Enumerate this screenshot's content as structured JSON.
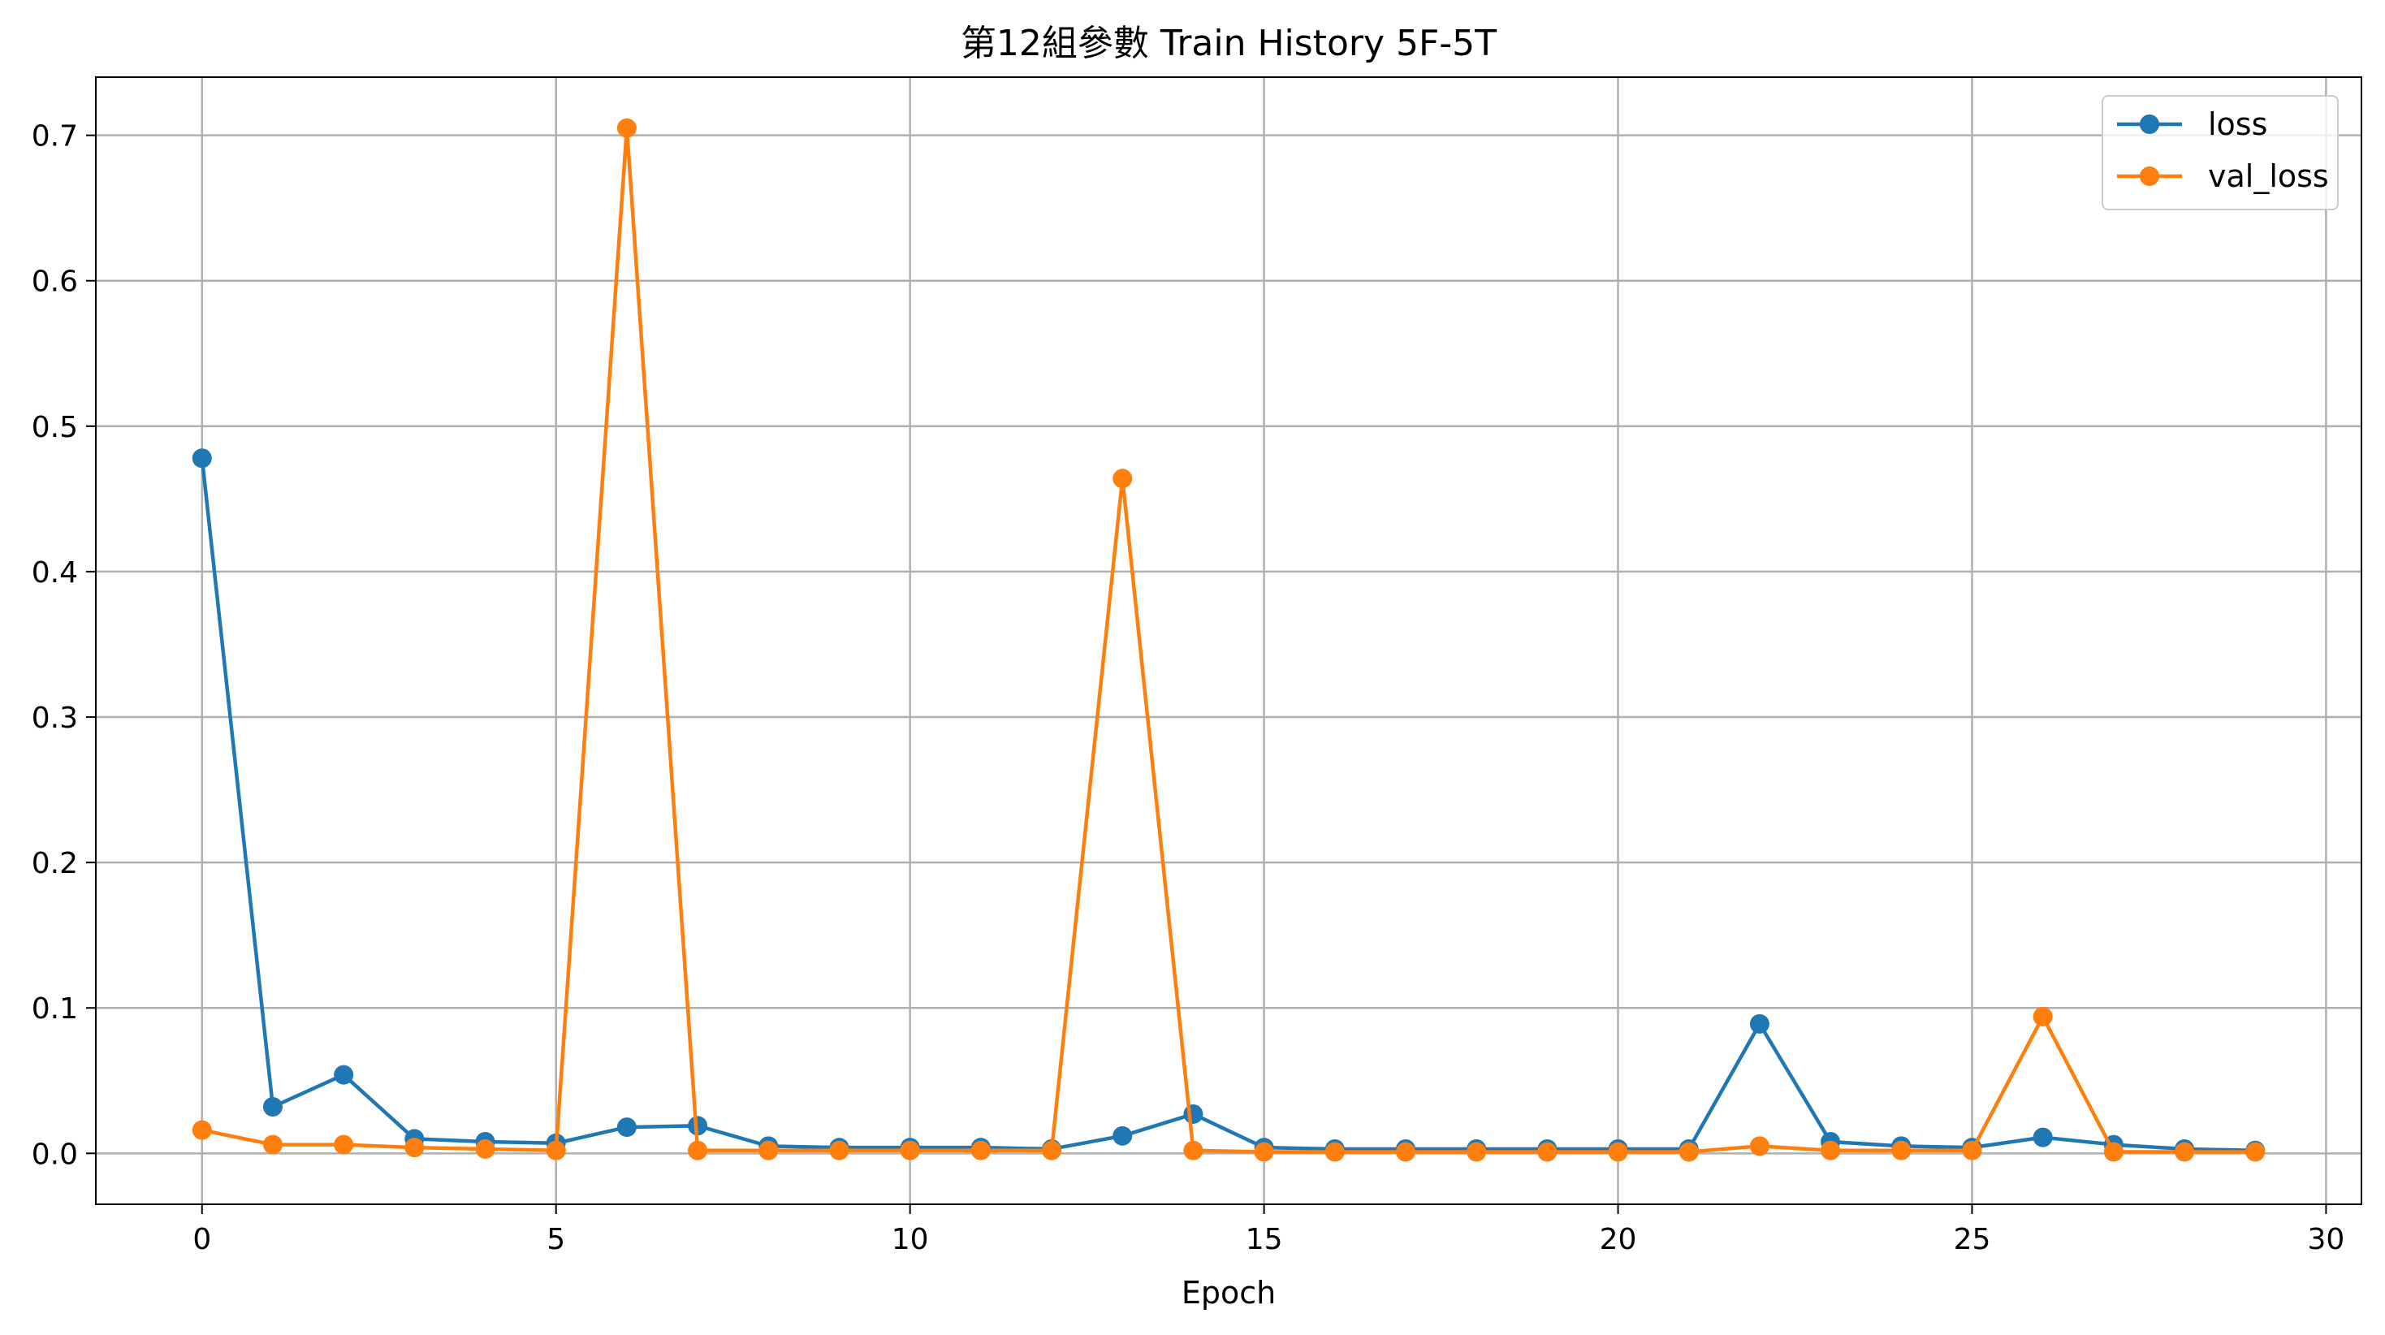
{
  "chart_data": {
    "type": "line",
    "title": "第12組參數 Train History 5F-5T",
    "xlabel": "Epoch",
    "ylabel": "",
    "xlim": [
      -1.5,
      30.5
    ],
    "ylim": [
      -0.035,
      0.74
    ],
    "xticks": [
      0,
      5,
      10,
      15,
      20,
      25,
      30
    ],
    "yticks": [
      0.0,
      0.1,
      0.2,
      0.3,
      0.4,
      0.5,
      0.6,
      0.7
    ],
    "xtick_labels": [
      "0",
      "5",
      "10",
      "15",
      "20",
      "25",
      "30"
    ],
    "ytick_labels": [
      "0.0",
      "0.1",
      "0.2",
      "0.3",
      "0.4",
      "0.5",
      "0.6",
      "0.7"
    ],
    "grid": true,
    "legend_position": "top-right",
    "x": [
      0,
      1,
      2,
      3,
      4,
      5,
      6,
      7,
      8,
      9,
      10,
      11,
      12,
      13,
      14,
      15,
      16,
      17,
      18,
      19,
      20,
      21,
      22,
      23,
      24,
      25,
      26,
      27,
      28,
      29
    ],
    "series": [
      {
        "name": "loss",
        "color": "#1f77b4",
        "values": [
          0.478,
          0.032,
          0.054,
          0.01,
          0.008,
          0.007,
          0.018,
          0.019,
          0.005,
          0.004,
          0.004,
          0.004,
          0.003,
          0.012,
          0.027,
          0.004,
          0.003,
          0.003,
          0.003,
          0.003,
          0.003,
          0.003,
          0.089,
          0.008,
          0.005,
          0.004,
          0.011,
          0.006,
          0.003,
          0.002
        ]
      },
      {
        "name": "val_loss",
        "color": "#ff7f0e",
        "values": [
          0.016,
          0.006,
          0.006,
          0.004,
          0.003,
          0.002,
          0.705,
          0.002,
          0.002,
          0.002,
          0.002,
          0.002,
          0.002,
          0.464,
          0.002,
          0.001,
          0.001,
          0.001,
          0.001,
          0.001,
          0.001,
          0.001,
          0.005,
          0.002,
          0.002,
          0.002,
          0.094,
          0.001,
          0.001,
          0.001
        ]
      }
    ]
  }
}
